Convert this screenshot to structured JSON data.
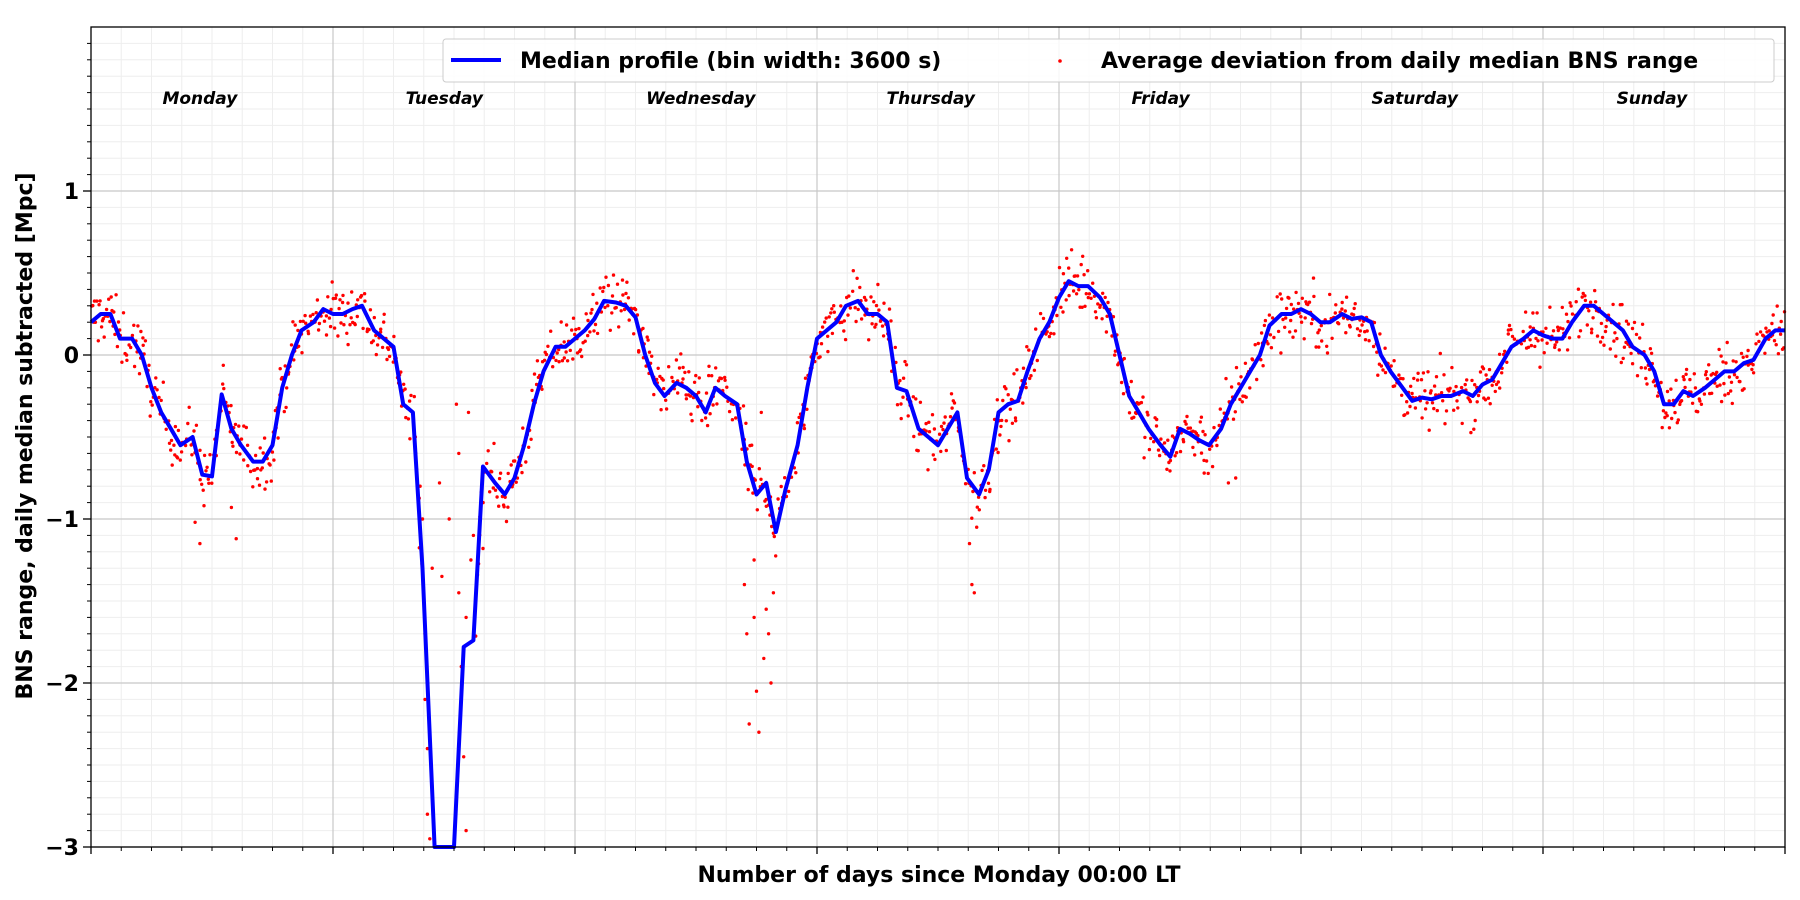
{
  "chart_data": {
    "type": "line",
    "xlabel": "Number of days since Monday 00:00 LT",
    "ylabel": "BNS range, daily median subtracted [Mpc]",
    "xlim": [
      0,
      7
    ],
    "ylim": [
      -3,
      2
    ],
    "yticks": [
      1,
      0,
      -1,
      -2,
      -3
    ],
    "ytick_labels": [
      "1",
      "0",
      "−1",
      "−2",
      "−3"
    ],
    "grid": true,
    "legend_position": "top-right",
    "day_labels": [
      {
        "name": "Monday",
        "x": 0.45
      },
      {
        "name": "Tuesday",
        "x": 1.46
      },
      {
        "name": "Wednesday",
        "x": 2.52
      },
      {
        "name": "Thursday",
        "x": 3.47
      },
      {
        "name": "Friday",
        "x": 4.42
      },
      {
        "name": "Saturday",
        "x": 5.47
      },
      {
        "name": "Sunday",
        "x": 6.45
      }
    ],
    "day_label_y": 1.53,
    "series": [
      {
        "name": "Median profile (bin width: 3600 s)",
        "kind": "line",
        "color": "#0000ff",
        "x": [
          0.0,
          0.04,
          0.08,
          0.12,
          0.17,
          0.21,
          0.25,
          0.29,
          0.33,
          0.37,
          0.42,
          0.46,
          0.5,
          0.54,
          0.58,
          0.62,
          0.67,
          0.71,
          0.75,
          0.79,
          0.83,
          0.87,
          0.92,
          0.96,
          1.0,
          1.04,
          1.08,
          1.12,
          1.17,
          1.21,
          1.25,
          1.29,
          1.33,
          1.37,
          1.42,
          1.46,
          1.5,
          1.54,
          1.58,
          1.62,
          1.67,
          1.71,
          1.75,
          1.79,
          1.83,
          1.87,
          1.92,
          1.96,
          2.0,
          2.04,
          2.08,
          2.12,
          2.17,
          2.21,
          2.25,
          2.29,
          2.33,
          2.37,
          2.42,
          2.46,
          2.5,
          2.54,
          2.58,
          2.62,
          2.67,
          2.71,
          2.75,
          2.79,
          2.83,
          2.87,
          2.92,
          2.96,
          3.0,
          3.04,
          3.08,
          3.12,
          3.17,
          3.21,
          3.25,
          3.29,
          3.33,
          3.37,
          3.42,
          3.46,
          3.5,
          3.54,
          3.58,
          3.62,
          3.67,
          3.71,
          3.75,
          3.79,
          3.83,
          3.87,
          3.92,
          3.96,
          4.0,
          4.04,
          4.08,
          4.12,
          4.17,
          4.21,
          4.25,
          4.29,
          4.33,
          4.37,
          4.42,
          4.46,
          4.5,
          4.54,
          4.58,
          4.62,
          4.67,
          4.71,
          4.75,
          4.79,
          4.83,
          4.87,
          4.92,
          4.96,
          5.0,
          5.04,
          5.08,
          5.12,
          5.17,
          5.21,
          5.25,
          5.29,
          5.33,
          5.37,
          5.42,
          5.46,
          5.5,
          5.54,
          5.58,
          5.62,
          5.67,
          5.71,
          5.75,
          5.79,
          5.83,
          5.87,
          5.92,
          5.96,
          6.0,
          6.04,
          6.08,
          6.12,
          6.17,
          6.21,
          6.25,
          6.29,
          6.33,
          6.37,
          6.42,
          6.46,
          6.5,
          6.54,
          6.58,
          6.62,
          6.67,
          6.71,
          6.75,
          6.79,
          6.83,
          6.87,
          6.92,
          6.96,
          7.0
        ],
        "y": [
          0.2,
          0.25,
          0.25,
          0.1,
          0.1,
          0.0,
          -0.2,
          -0.35,
          -0.45,
          -0.55,
          -0.5,
          -0.73,
          -0.74,
          -0.24,
          -0.45,
          -0.55,
          -0.65,
          -0.65,
          -0.55,
          -0.2,
          0.0,
          0.15,
          0.2,
          0.28,
          0.25,
          0.25,
          0.28,
          0.3,
          0.15,
          0.1,
          0.05,
          -0.3,
          -0.35,
          -1.3,
          -3.1,
          -3.1,
          -3.1,
          -1.78,
          -1.74,
          -0.68,
          -0.78,
          -0.85,
          -0.75,
          -0.55,
          -0.3,
          -0.1,
          0.05,
          0.05,
          0.1,
          0.15,
          0.22,
          0.33,
          0.32,
          0.3,
          0.23,
          0.0,
          -0.17,
          -0.25,
          -0.17,
          -0.2,
          -0.25,
          -0.35,
          -0.2,
          -0.25,
          -0.3,
          -0.65,
          -0.85,
          -0.78,
          -1.08,
          -0.82,
          -0.55,
          -0.2,
          0.1,
          0.15,
          0.2,
          0.3,
          0.33,
          0.25,
          0.25,
          0.2,
          -0.2,
          -0.22,
          -0.45,
          -0.5,
          -0.55,
          -0.45,
          -0.35,
          -0.75,
          -0.85,
          -0.7,
          -0.35,
          -0.3,
          -0.28,
          -0.1,
          0.1,
          0.2,
          0.35,
          0.45,
          0.42,
          0.42,
          0.35,
          0.25,
          0.0,
          -0.25,
          -0.35,
          -0.45,
          -0.55,
          -0.62,
          -0.45,
          -0.48,
          -0.52,
          -0.55,
          -0.45,
          -0.3,
          -0.2,
          -0.1,
          0.0,
          0.18,
          0.25,
          0.25,
          0.28,
          0.25,
          0.2,
          0.2,
          0.25,
          0.22,
          0.23,
          0.2,
          0.0,
          -0.1,
          -0.2,
          -0.28,
          -0.26,
          -0.27,
          -0.25,
          -0.25,
          -0.22,
          -0.25,
          -0.18,
          -0.15,
          -0.05,
          0.05,
          0.1,
          0.15,
          0.12,
          0.1,
          0.1,
          0.2,
          0.3,
          0.3,
          0.25,
          0.2,
          0.15,
          0.05,
          0.0,
          -0.1,
          -0.3,
          -0.3,
          -0.22,
          -0.25,
          -0.2,
          -0.15,
          -0.1,
          -0.1,
          -0.05,
          -0.03,
          0.1,
          0.15,
          0.15
        ]
      },
      {
        "name": "Average deviation from daily median BNS range",
        "kind": "scatter",
        "color": "#ff0000",
        "points_per_bin": 9,
        "spread": 0.09,
        "extra_points": [
          {
            "x": 0.45,
            "y": -1.15
          },
          {
            "x": 0.43,
            "y": -1.02
          },
          {
            "x": 0.6,
            "y": -1.12
          },
          {
            "x": 0.58,
            "y": -0.93
          },
          {
            "x": 1.38,
            "y": -1.7
          },
          {
            "x": 1.38,
            "y": -2.1
          },
          {
            "x": 1.39,
            "y": -2.4
          },
          {
            "x": 1.39,
            "y": -2.8
          },
          {
            "x": 1.4,
            "y": -2.95
          },
          {
            "x": 1.41,
            "y": -1.3
          },
          {
            "x": 1.45,
            "y": -1.35
          },
          {
            "x": 1.48,
            "y": -1.0
          },
          {
            "x": 1.51,
            "y": -0.3
          },
          {
            "x": 1.52,
            "y": -0.6
          },
          {
            "x": 1.52,
            "y": -1.45
          },
          {
            "x": 1.53,
            "y": -1.9
          },
          {
            "x": 1.54,
            "y": -2.45
          },
          {
            "x": 1.55,
            "y": -2.9
          },
          {
            "x": 1.55,
            "y": -1.6
          },
          {
            "x": 1.56,
            "y": -0.35
          },
          {
            "x": 1.57,
            "y": -1.25
          },
          {
            "x": 1.58,
            "y": -1.1
          },
          {
            "x": 1.62,
            "y": -1.18
          },
          {
            "x": 1.34,
            "y": -0.5
          },
          {
            "x": 1.36,
            "y": -0.8
          },
          {
            "x": 1.37,
            "y": -1.0
          },
          {
            "x": 1.44,
            "y": -0.78
          },
          {
            "x": 2.7,
            "y": -1.4
          },
          {
            "x": 2.71,
            "y": -1.7
          },
          {
            "x": 2.72,
            "y": -2.25
          },
          {
            "x": 2.74,
            "y": -1.6
          },
          {
            "x": 2.75,
            "y": -2.05
          },
          {
            "x": 2.76,
            "y": -2.3
          },
          {
            "x": 2.78,
            "y": -1.85
          },
          {
            "x": 2.79,
            "y": -1.55
          },
          {
            "x": 2.8,
            "y": -1.7
          },
          {
            "x": 2.81,
            "y": -2.0
          },
          {
            "x": 2.82,
            "y": -1.45
          },
          {
            "x": 2.74,
            "y": -1.25
          },
          {
            "x": 2.77,
            "y": -0.35
          },
          {
            "x": 2.73,
            "y": -0.55
          },
          {
            "x": 3.64,
            "y": -1.4
          },
          {
            "x": 3.65,
            "y": -1.45
          },
          {
            "x": 3.63,
            "y": -1.15
          },
          {
            "x": 3.66,
            "y": -1.05
          },
          {
            "x": 4.6,
            "y": -0.72
          },
          {
            "x": 4.7,
            "y": -0.78
          },
          {
            "x": 4.73,
            "y": -0.75
          }
        ]
      }
    ]
  }
}
